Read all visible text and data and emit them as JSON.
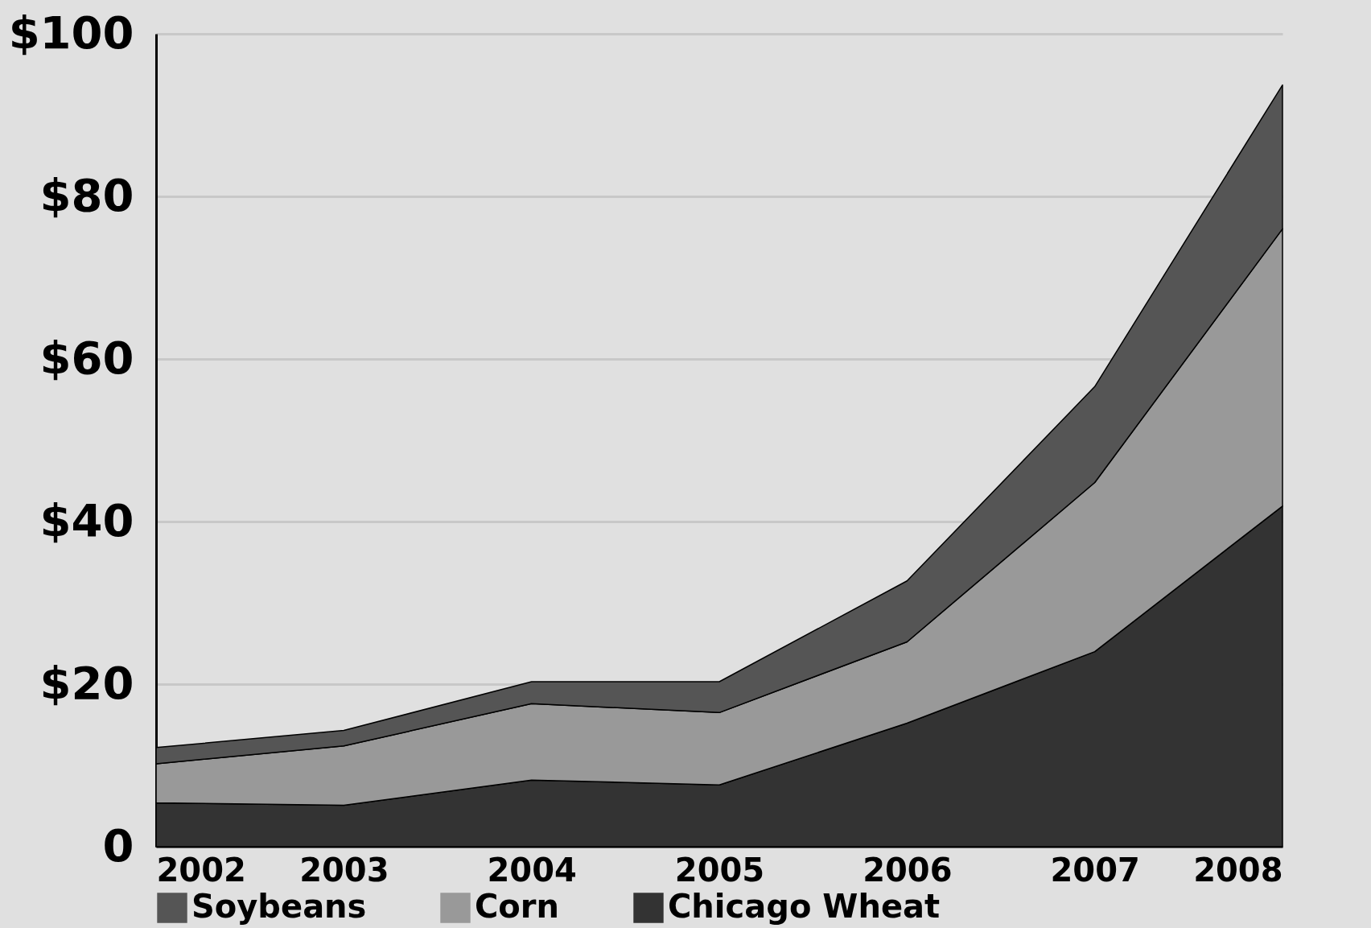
{
  "chart_data": {
    "type": "area",
    "stacked": true,
    "x": [
      2002,
      2003,
      2004,
      2005,
      2006,
      2007,
      2008
    ],
    "series": [
      {
        "name": "Chicago Wheat",
        "color": "#333333",
        "values": [
          5.4,
          5.1,
          8.2,
          7.6,
          15.2,
          24.0,
          41.9
        ]
      },
      {
        "name": "Corn",
        "color": "#999999",
        "values": [
          4.8,
          7.3,
          9.4,
          8.9,
          10.0,
          20.8,
          34.1
        ]
      },
      {
        "name": "Soybeans",
        "color": "#555555",
        "values": [
          2.0,
          1.9,
          2.7,
          3.8,
          7.5,
          11.8,
          17.7
        ]
      }
    ],
    "xlim": [
      2002,
      2008
    ],
    "xticks": [
      2002,
      2003,
      2004,
      2005,
      2006,
      2007,
      2008
    ],
    "ylim": [
      0,
      100
    ],
    "yticks": [
      {
        "value": 0,
        "label": "0"
      },
      {
        "value": 20,
        "label": "$20"
      },
      {
        "value": 40,
        "label": "$40"
      },
      {
        "value": 60,
        "label": "$60"
      },
      {
        "value": 80,
        "label": "$80"
      },
      {
        "value": 100,
        "label": "$100"
      }
    ],
    "grid": "y",
    "legend": "bottom"
  }
}
